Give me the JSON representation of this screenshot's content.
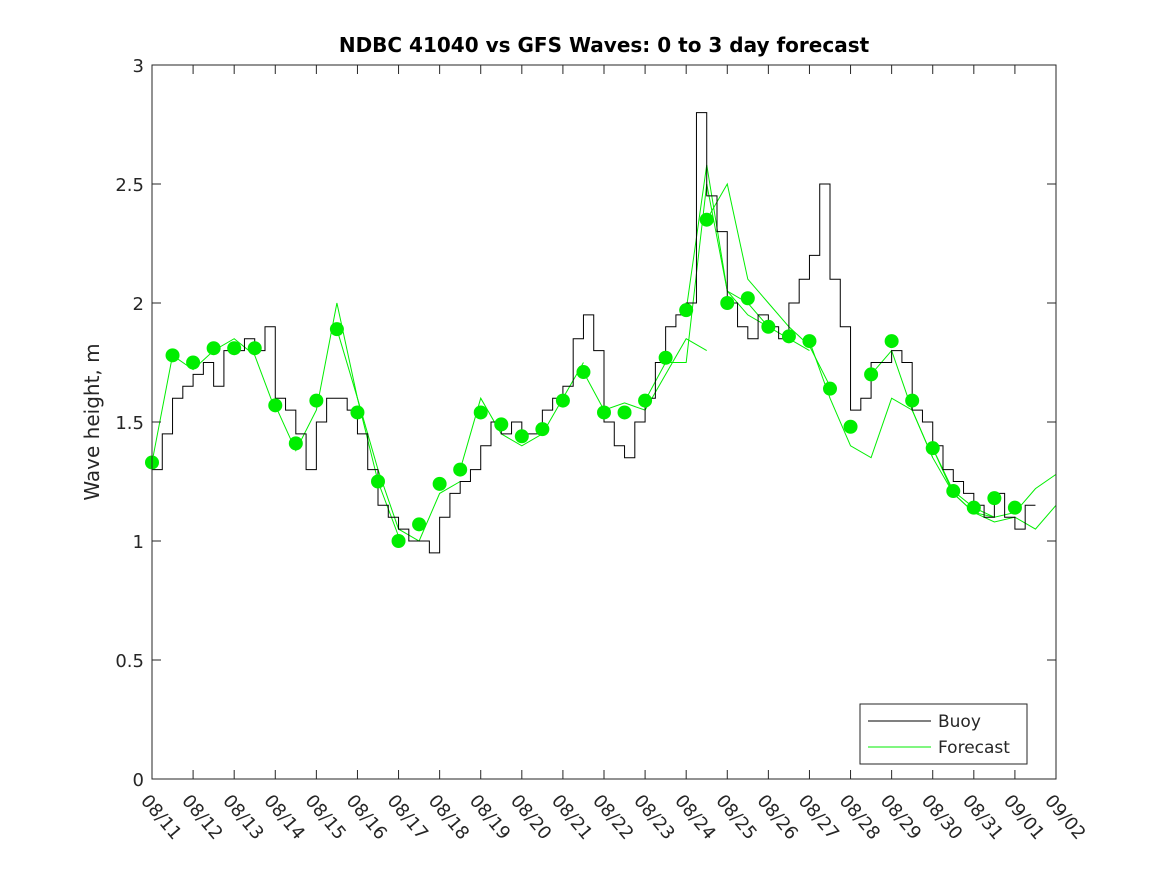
{
  "chart_data": {
    "type": "line",
    "title": "NDBC 41040 vs GFS Waves: 0 to 3 day forecast",
    "xlabel": "",
    "ylabel": "Wave height, m",
    "ylim": [
      0,
      3
    ],
    "xlim_days": [
      0,
      22
    ],
    "yticks": [
      0,
      0.5,
      1,
      1.5,
      2,
      2.5,
      3
    ],
    "ytick_labels": [
      "0",
      "0.5",
      "1",
      "1.5",
      "2",
      "2.5",
      "3"
    ],
    "xtick_labels": [
      "08/11",
      "08/12",
      "08/13",
      "08/14",
      "08/15",
      "08/16",
      "08/17",
      "08/18",
      "08/19",
      "08/20",
      "08/21",
      "08/22",
      "08/23",
      "08/24",
      "08/25",
      "08/26",
      "08/27",
      "08/28",
      "08/29",
      "08/30",
      "08/31",
      "09/01",
      "09/02"
    ],
    "grid": false,
    "legend": {
      "position": "bottom-right",
      "entries": [
        {
          "label": "Buoy",
          "color": "#000000"
        },
        {
          "label": "Forecast",
          "color": "#00ee00"
        }
      ]
    },
    "colors": {
      "buoy": "#000000",
      "forecast": "#00ee00",
      "dots": "#00ee00"
    },
    "buoy": {
      "name": "Buoy",
      "step_days": 0.25,
      "values": [
        1.3,
        1.45,
        1.6,
        1.65,
        1.7,
        1.75,
        1.65,
        1.8,
        1.8,
        1.85,
        1.8,
        1.9,
        1.6,
        1.55,
        1.45,
        1.3,
        1.5,
        1.6,
        1.6,
        1.55,
        1.45,
        1.3,
        1.15,
        1.1,
        1.05,
        1.0,
        1.0,
        0.95,
        1.1,
        1.2,
        1.25,
        1.3,
        1.4,
        1.5,
        1.45,
        1.5,
        1.45,
        1.45,
        1.55,
        1.6,
        1.65,
        1.85,
        1.95,
        1.8,
        1.5,
        1.4,
        1.35,
        1.5,
        1.6,
        1.75,
        1.9,
        1.95,
        2.0,
        2.8,
        2.45,
        2.3,
        2.0,
        1.9,
        1.85,
        1.95,
        1.9,
        1.85,
        2.0,
        2.1,
        2.2,
        2.5,
        2.1,
        1.9,
        1.55,
        1.6,
        1.75,
        1.75,
        1.8,
        1.75,
        1.55,
        1.5,
        1.4,
        1.3,
        1.25,
        1.2,
        1.15,
        1.1,
        1.2,
        1.1,
        1.05,
        1.15
      ]
    },
    "forecast_points": {
      "name": "Forecast (analysis points)",
      "step_days": 0.5,
      "values": [
        1.33,
        1.78,
        1.75,
        1.81,
        1.81,
        1.81,
        1.57,
        1.41,
        1.59,
        1.89,
        1.54,
        1.25,
        1.0,
        1.07,
        1.24,
        1.3,
        1.54,
        1.49,
        1.44,
        1.47,
        1.59,
        1.71,
        1.54,
        1.54,
        1.59,
        1.77,
        1.97,
        2.35,
        2.0,
        2.02,
        1.9,
        1.86,
        1.84,
        1.64,
        1.48,
        1.7,
        1.84,
        1.59,
        1.39,
        1.21,
        1.14,
        1.18,
        1.14
      ]
    },
    "forecast_runs": [
      {
        "start_day": 0,
        "step_days": 0.5,
        "values": [
          1.33,
          1.78,
          1.72,
          1.8,
          1.85,
          1.78,
          1.55
        ]
      },
      {
        "start_day": 3,
        "step_days": 0.5,
        "values": [
          1.57,
          1.38,
          1.55,
          2.0,
          1.6,
          1.25,
          1.02
        ]
      },
      {
        "start_day": 4.5,
        "step_days": 0.5,
        "values": [
          1.89,
          1.6,
          1.3,
          1.05,
          1.0,
          1.2,
          1.25
        ]
      },
      {
        "start_day": 7.5,
        "step_days": 0.5,
        "values": [
          1.3,
          1.6,
          1.45,
          1.4,
          1.45,
          1.6,
          1.75
        ]
      },
      {
        "start_day": 10.5,
        "step_days": 0.5,
        "values": [
          1.71,
          1.55,
          1.58,
          1.55,
          1.7,
          1.85,
          1.8
        ]
      },
      {
        "start_day": 12,
        "step_days": 0.5,
        "values": [
          1.59,
          1.75,
          1.75,
          2.5,
          2.05,
          2.0,
          1.9
        ]
      },
      {
        "start_day": 13,
        "step_days": 0.5,
        "values": [
          1.97,
          2.58,
          2.05,
          1.95,
          1.9,
          1.85,
          1.8
        ]
      },
      {
        "start_day": 13.5,
        "step_days": 0.5,
        "values": [
          2.35,
          2.5,
          2.1,
          2.0,
          1.9,
          1.82,
          1.65
        ]
      },
      {
        "start_day": 16,
        "step_days": 0.5,
        "values": [
          1.84,
          1.6,
          1.4,
          1.35,
          1.6,
          1.55,
          1.35
        ]
      },
      {
        "start_day": 17.5,
        "step_days": 0.5,
        "values": [
          1.7,
          1.8,
          1.55,
          1.35,
          1.2,
          1.12,
          1.1
        ]
      },
      {
        "start_day": 19,
        "step_days": 0.5,
        "values": [
          1.39,
          1.2,
          1.12,
          1.08,
          1.1,
          1.05,
          1.15
        ]
      },
      {
        "start_day": 19,
        "step_days": 0.5,
        "values": [
          1.39,
          1.21,
          1.14,
          1.1,
          1.12,
          1.22,
          1.28
        ]
      }
    ]
  }
}
